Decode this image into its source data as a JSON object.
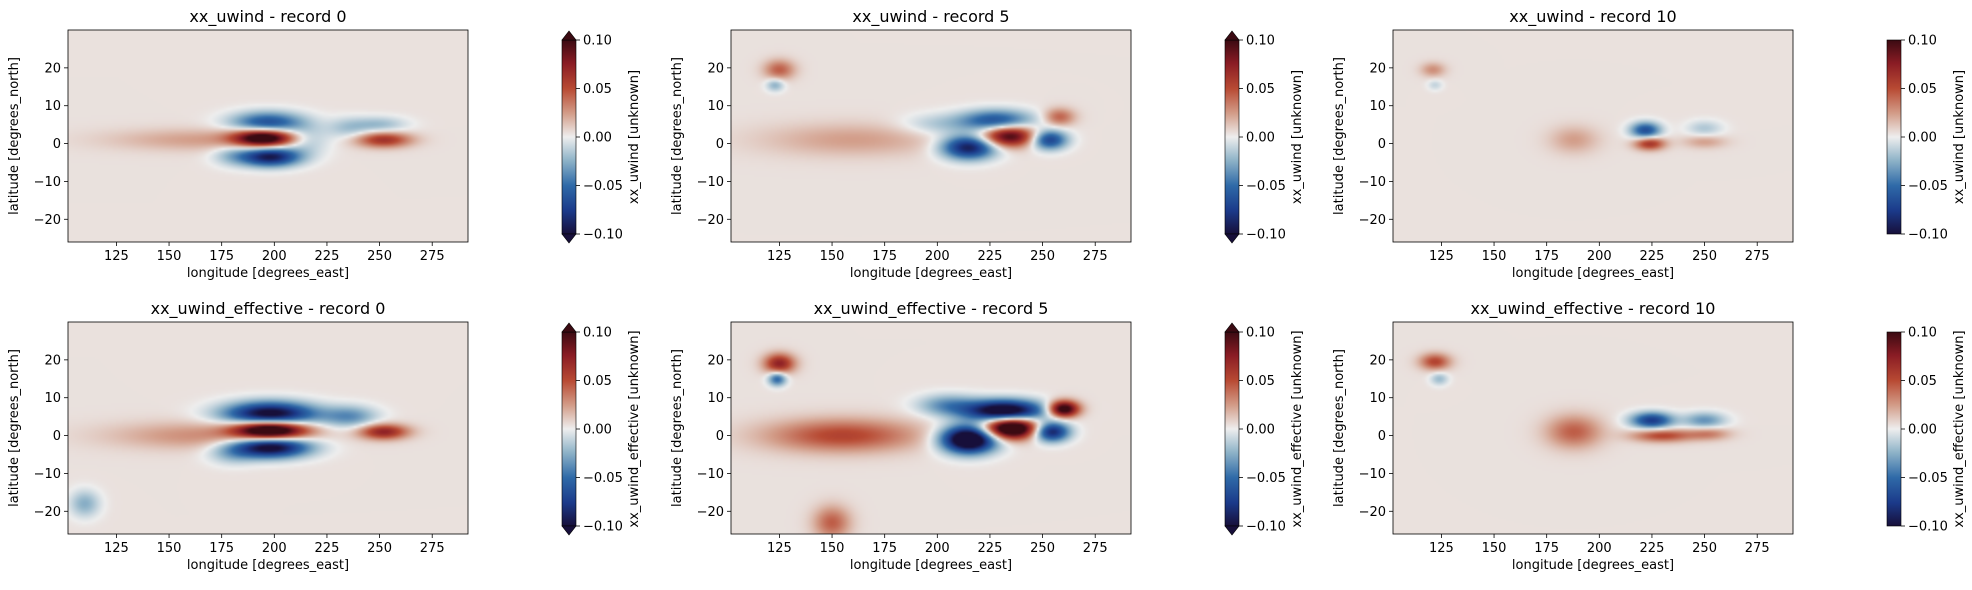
{
  "chart_data": [
    {
      "type": "heatmap",
      "title": "xx_uwind - record 0",
      "xlabel": "longitude [degrees_east]",
      "ylabel": "latitude [degrees_north]",
      "xlim": [
        102,
        292
      ],
      "ylim": [
        -26,
        30
      ],
      "xticks": [
        125,
        150,
        175,
        200,
        225,
        250,
        275
      ],
      "yticks": [
        -20,
        -10,
        0,
        10,
        20
      ],
      "colorbar": {
        "label": "xx_uwind [unknown]",
        "range": [
          -0.1,
          0.1
        ],
        "ticks": [
          "0.10",
          "0.05",
          "0.00",
          "−0.05",
          "−0.10"
        ],
        "extend": "both"
      },
      "features": [
        {
          "lon": 195,
          "lat": 1.5,
          "amp": 0.12,
          "slon": 10,
          "slat": 1.6
        },
        {
          "lon": 198,
          "lat": -3.5,
          "amp": -0.1,
          "slon": 10,
          "slat": 1.8
        },
        {
          "lon": 197,
          "lat": 5.5,
          "amp": -0.07,
          "slon": 12,
          "slat": 2
        },
        {
          "lon": 215,
          "lat": 1,
          "amp": -0.025,
          "slon": 8,
          "slat": 2.5
        },
        {
          "lon": 235,
          "lat": 4,
          "amp": -0.02,
          "slon": 7,
          "slat": 2
        },
        {
          "lon": 252,
          "lat": 1,
          "amp": 0.06,
          "slon": 9,
          "slat": 1.4
        },
        {
          "lon": 250,
          "lat": 5,
          "amp": -0.025,
          "slon": 9,
          "slat": 1.5
        },
        {
          "lon": 165,
          "lat": 1,
          "amp": 0.02,
          "slon": 30,
          "slat": 2
        },
        {
          "lon": 180,
          "lat": -3,
          "amp": -0.02,
          "slon": 7,
          "slat": 2
        }
      ]
    },
    {
      "type": "heatmap",
      "title": "xx_uwind - record 5",
      "xlabel": "longitude [degrees_east]",
      "ylabel": "latitude [degrees_north]",
      "xlim": [
        102,
        292
      ],
      "ylim": [
        -26,
        30
      ],
      "xticks": [
        125,
        150,
        175,
        200,
        225,
        250,
        275
      ],
      "yticks": [
        -20,
        -10,
        0,
        10,
        20
      ],
      "colorbar": {
        "label": "xx_uwind [unknown]",
        "range": [
          -0.1,
          0.1
        ],
        "ticks": [
          "0.10",
          "0.05",
          "0.00",
          "−0.05",
          "−0.10"
        ],
        "extend": "both"
      },
      "features": [
        {
          "lon": 125,
          "lat": 19.5,
          "amp": 0.04,
          "slon": 5,
          "slat": 1.8
        },
        {
          "lon": 123,
          "lat": 15.5,
          "amp": -0.03,
          "slon": 3,
          "slat": 1.2
        },
        {
          "lon": 215,
          "lat": -1,
          "amp": -0.1,
          "slon": 9,
          "slat": 2.2
        },
        {
          "lon": 234,
          "lat": 2,
          "amp": 0.1,
          "slon": 9,
          "slat": 2
        },
        {
          "lon": 228,
          "lat": 6,
          "amp": -0.07,
          "slon": 12,
          "slat": 2
        },
        {
          "lon": 253,
          "lat": 1,
          "amp": -0.08,
          "slon": 6,
          "slat": 1.8
        },
        {
          "lon": 258,
          "lat": 7,
          "amp": 0.04,
          "slon": 5,
          "slat": 1.6
        },
        {
          "lon": 160,
          "lat": 1,
          "amp": 0.02,
          "slon": 30,
          "slat": 3
        },
        {
          "lon": 200,
          "lat": 5,
          "amp": -0.02,
          "slon": 12,
          "slat": 2
        }
      ]
    },
    {
      "type": "heatmap",
      "title": "xx_uwind - record 10",
      "xlabel": "longitude [degrees_east]",
      "ylabel": "latitude [degrees_north]",
      "xlim": [
        102,
        292
      ],
      "ylim": [
        -26,
        30
      ],
      "xticks": [
        125,
        150,
        175,
        200,
        225,
        250,
        275
      ],
      "yticks": [
        -20,
        -10,
        0,
        10,
        20
      ],
      "colorbar": {
        "label": "xx_uwind [unknown]",
        "range": [
          -0.1,
          0.1
        ],
        "ticks": [
          "0.10",
          "0.05",
          "0.00",
          "−0.05",
          "−0.10"
        ],
        "extend": "neither"
      },
      "features": [
        {
          "lon": 121,
          "lat": 19.5,
          "amp": 0.025,
          "slon": 4,
          "slat": 1.3
        },
        {
          "lon": 122,
          "lat": 15.5,
          "amp": -0.015,
          "slon": 2.5,
          "slat": 1
        },
        {
          "lon": 222,
          "lat": 3.5,
          "amp": -0.07,
          "slon": 5,
          "slat": 1.5
        },
        {
          "lon": 224,
          "lat": 0,
          "amp": 0.06,
          "slon": 5,
          "slat": 1.2
        },
        {
          "lon": 250,
          "lat": 4,
          "amp": -0.02,
          "slon": 6,
          "slat": 1.5
        },
        {
          "lon": 250,
          "lat": 0.5,
          "amp": 0.02,
          "slon": 7,
          "slat": 1.2
        },
        {
          "lon": 188,
          "lat": 1,
          "amp": 0.02,
          "slon": 8,
          "slat": 2.5
        }
      ]
    },
    {
      "type": "heatmap",
      "title": "xx_uwind_effective - record 0",
      "xlabel": "longitude [degrees_east]",
      "ylabel": "latitude [degrees_north]",
      "xlim": [
        102,
        292
      ],
      "ylim": [
        -26,
        30
      ],
      "xticks": [
        125,
        150,
        175,
        200,
        225,
        250,
        275
      ],
      "yticks": [
        -20,
        -10,
        0,
        10,
        20
      ],
      "colorbar": {
        "label": "xx_uwind_effective [unknown]",
        "range": [
          -0.1,
          0.1
        ],
        "ticks": [
          "0.10",
          "0.05",
          "0.00",
          "−0.05",
          "−0.10"
        ],
        "extend": "both"
      },
      "features": [
        {
          "lon": 198,
          "lat": 1.5,
          "amp": 0.15,
          "slon": 12,
          "slat": 1.8
        },
        {
          "lon": 198,
          "lat": 5.5,
          "amp": -0.12,
          "slon": 15,
          "slat": 2.3
        },
        {
          "lon": 198,
          "lat": -3,
          "amp": -0.12,
          "slon": 13,
          "slat": 2
        },
        {
          "lon": 252,
          "lat": 1,
          "amp": 0.07,
          "slon": 8,
          "slat": 1.4
        },
        {
          "lon": 236,
          "lat": 5,
          "amp": -0.04,
          "slon": 9,
          "slat": 2
        },
        {
          "lon": 165,
          "lat": 0,
          "amp": 0.025,
          "slon": 30,
          "slat": 2.5
        },
        {
          "lon": 110,
          "lat": -18,
          "amp": -0.03,
          "slon": 5,
          "slat": 2.5
        },
        {
          "lon": 180,
          "lat": -5,
          "amp": -0.02,
          "slon": 8,
          "slat": 2
        }
      ]
    },
    {
      "type": "heatmap",
      "title": "xx_uwind_effective - record 5",
      "xlabel": "longitude [degrees_east]",
      "ylabel": "latitude [degrees_north]",
      "xlim": [
        102,
        292
      ],
      "ylim": [
        -26,
        30
      ],
      "xticks": [
        125,
        150,
        175,
        200,
        225,
        250,
        275
      ],
      "yticks": [
        -20,
        -10,
        0,
        10,
        20
      ],
      "colorbar": {
        "label": "xx_uwind_effective [unknown]",
        "range": [
          -0.1,
          0.1
        ],
        "ticks": [
          "0.10",
          "0.05",
          "0.00",
          "−0.05",
          "−0.10"
        ],
        "extend": "both"
      },
      "features": [
        {
          "lon": 125,
          "lat": 19,
          "amp": 0.07,
          "slon": 5,
          "slat": 1.8
        },
        {
          "lon": 124,
          "lat": 15,
          "amp": -0.06,
          "slon": 3,
          "slat": 1.3
        },
        {
          "lon": 155,
          "lat": 0,
          "amp": 0.05,
          "slon": 25,
          "slat": 3
        },
        {
          "lon": 215,
          "lat": -1,
          "amp": -0.15,
          "slon": 9,
          "slat": 2.5
        },
        {
          "lon": 235,
          "lat": 2,
          "amp": 0.15,
          "slon": 9,
          "slat": 2
        },
        {
          "lon": 232,
          "lat": 6.5,
          "amp": -0.13,
          "slon": 13,
          "slat": 2
        },
        {
          "lon": 260,
          "lat": 7,
          "amp": 0.12,
          "slon": 5,
          "slat": 1.5
        },
        {
          "lon": 254,
          "lat": 1,
          "amp": -0.1,
          "slon": 6,
          "slat": 1.8
        },
        {
          "lon": 150,
          "lat": -23,
          "amp": 0.04,
          "slon": 6,
          "slat": 3
        },
        {
          "lon": 205,
          "lat": 8,
          "amp": -0.04,
          "slon": 10,
          "slat": 2
        }
      ]
    },
    {
      "type": "heatmap",
      "title": "xx_uwind_effective - record 10",
      "xlabel": "longitude [degrees_east]",
      "ylabel": "latitude [degrees_north]",
      "xlim": [
        102,
        292
      ],
      "ylim": [
        -26,
        30
      ],
      "xticks": [
        125,
        150,
        175,
        200,
        225,
        250,
        275
      ],
      "yticks": [
        -20,
        -10,
        0,
        10,
        20
      ],
      "colorbar": {
        "label": "xx_uwind_effective [unknown]",
        "range": [
          -0.1,
          0.1
        ],
        "ticks": [
          "0.10",
          "0.05",
          "0.00",
          "−0.05",
          "−0.10"
        ],
        "extend": "neither"
      },
      "features": [
        {
          "lon": 122,
          "lat": 19.5,
          "amp": 0.05,
          "slon": 5,
          "slat": 1.5
        },
        {
          "lon": 124,
          "lat": 15,
          "amp": -0.025,
          "slon": 3,
          "slat": 1.2
        },
        {
          "lon": 188,
          "lat": 1,
          "amp": 0.04,
          "slon": 9,
          "slat": 3
        },
        {
          "lon": 225,
          "lat": 4,
          "amp": -0.08,
          "slon": 7,
          "slat": 1.5
        },
        {
          "lon": 230,
          "lat": 0,
          "amp": 0.05,
          "slon": 10,
          "slat": 1.2
        },
        {
          "lon": 250,
          "lat": 4,
          "amp": -0.04,
          "slon": 7,
          "slat": 1.5
        },
        {
          "lon": 252,
          "lat": 0.5,
          "amp": 0.03,
          "slon": 7,
          "slat": 1.2
        }
      ]
    }
  ]
}
